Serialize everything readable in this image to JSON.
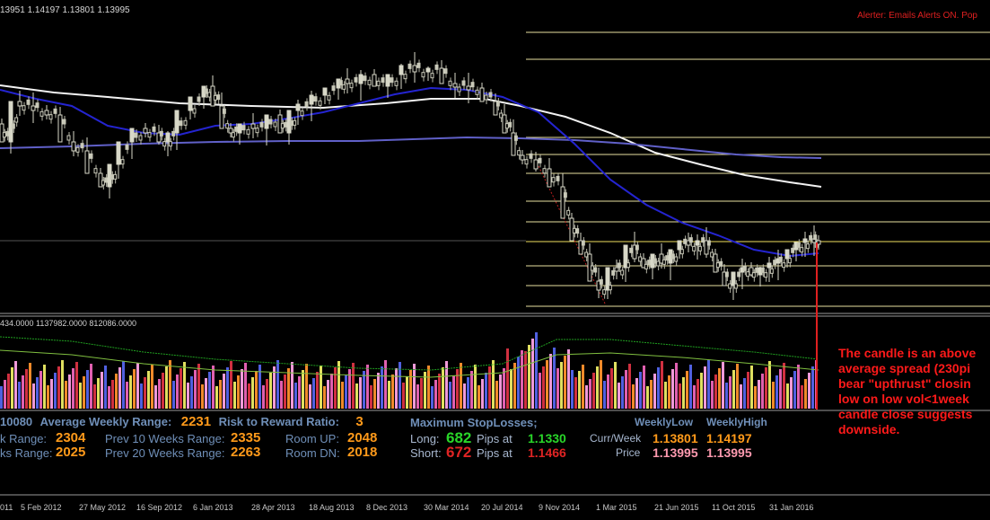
{
  "header": {
    "ohlc": "13951 1.14197 1.13801 1.13995",
    "alerter": "Alerter:  Emails Alerts ON.  Pop"
  },
  "price_panel": {
    "fib_levels_color": "#e8e0a0",
    "ma_fast_color": "#2a2ad0",
    "ma_slow_color": "#f0f0f0",
    "ma_long_color": "#6060c8"
  },
  "volume_panel": {
    "header": "434.0000 1137982.0000 812086.0000"
  },
  "annotation": {
    "lines": [
      "The candle is an above",
      "average spread (230pi",
      "bear \"upthrust\" closin",
      "low on low vol<1week",
      "candle close suggests",
      "downside."
    ]
  },
  "dashboard": {
    "row1": {
      "prefix": "10080",
      "awr_label": "Average Weekly Range:",
      "awr_value": "2231",
      "rr_label": "Risk to Reward Ratio:",
      "rr_value": "3"
    },
    "row2": {
      "k_label": "k Range:",
      "k_value": "2304",
      "prev10_label": "Prev 10 Weeks Range:",
      "prev10_value": "2335",
      "room_up_label": "Room UP:",
      "room_up_value": "2048"
    },
    "row3": {
      "ks_label": "ks Range:",
      "ks_value": "2025",
      "prev20_label": "Prev 20 Weeks Range:",
      "prev20_value": "2263",
      "room_dn_label": "Room DN:",
      "room_dn_value": "2018"
    },
    "stoploss": {
      "title": "Maximum  StopLosses;",
      "long_label": "Long:",
      "long_pips": "682",
      "long_pips_label": "Pips at",
      "long_price": "1.1330",
      "short_label": "Short:",
      "short_pips": "672",
      "short_pips_label": "Pips at",
      "short_price": "1.1466"
    },
    "weekly": {
      "low_header": "WeeklyLow",
      "high_header": "WeeklyHigh",
      "curr_label": "Curr/Week",
      "curr_low": "1.13801",
      "curr_high": "1.14197",
      "price_label": "Price",
      "price_low": "1.13995",
      "price_high": "1.13995"
    }
  },
  "time_axis": {
    "ticks": [
      "011",
      "5 Feb 2012",
      "27 May 2012",
      "16 Sep 2012",
      "6 Jan 2013",
      "28 Apr 2013",
      "18 Aug 2013",
      "8 Dec 2013",
      "30 Mar 2014",
      "20 Jul 2014",
      "9 Nov 2014",
      "1 Mar 2015",
      "21 Jun 2015",
      "11 Oct 2015",
      "31 Jan 2016"
    ]
  }
}
